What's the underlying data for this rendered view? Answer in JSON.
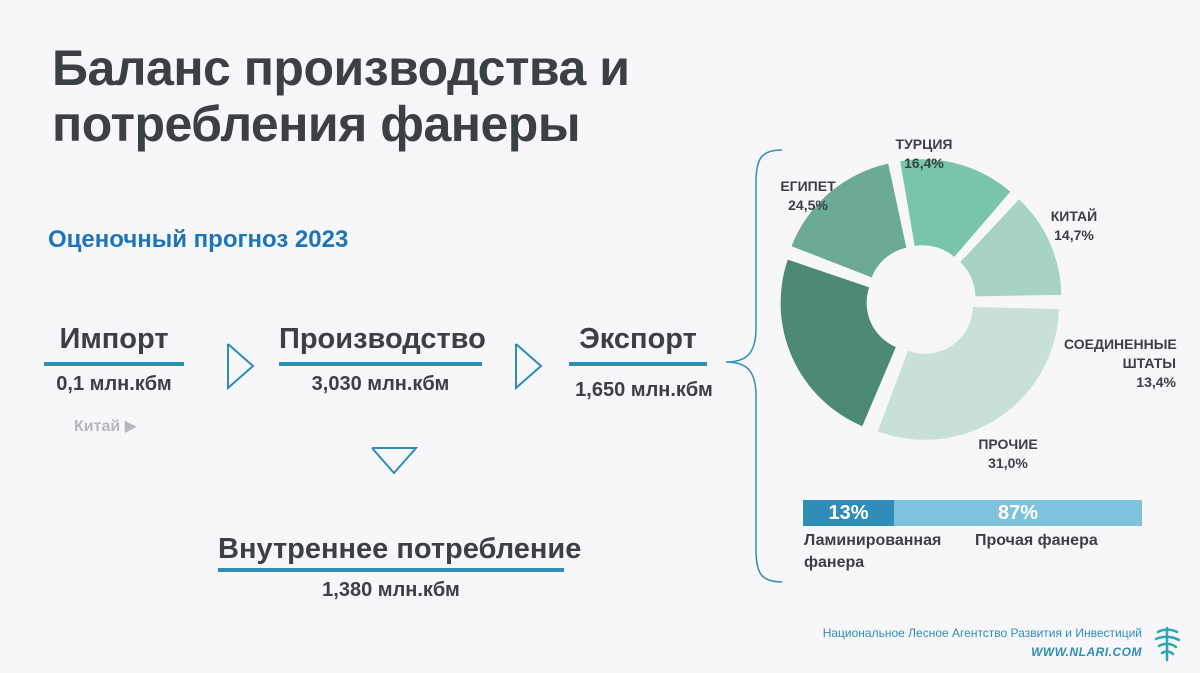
{
  "title": "Баланс производства и потребления фанеры",
  "subtitle": "Оценочный прогноз 2023",
  "flow": {
    "import": {
      "label": "Импорт",
      "value": "0,1 млн.кбм",
      "note": "Китай ▶"
    },
    "production": {
      "label": "Производство",
      "value": "3,030 млн.кбм"
    },
    "export": {
      "label": "Экспорт",
      "value": "1,650 млн.кбм"
    },
    "domestic": {
      "label": "Внутреннее потребление",
      "value": "1,380 млн.кбм"
    }
  },
  "chart_data": [
    {
      "type": "pie",
      "title": "",
      "categories": [
        "ТУРЦИЯ",
        "КИТАЙ",
        "СОЕДИНЕННЫЕ ШТАТЫ",
        "ПРОЧИЕ",
        "ЕГИПЕТ"
      ],
      "values": [
        16.4,
        14.7,
        13.4,
        31.0,
        24.5
      ],
      "labels": [
        "16,4%",
        "14,7%",
        "13,4%",
        "31,0%",
        "24,5%"
      ],
      "colors": [
        "#6aaa97",
        "#78c5aa",
        "#a7d3c4",
        "#c7e1d8",
        "#4c8a73"
      ],
      "legend": "none"
    },
    {
      "type": "bar",
      "title": "",
      "categories": [
        "Ламинированная фанера",
        "Прочая фанера"
      ],
      "values": [
        13,
        87
      ],
      "labels": [
        "13%",
        "87%"
      ],
      "colors": [
        "#2f8db8",
        "#80c1dc"
      ]
    }
  ],
  "pie_label_lines": {
    "turkey": "ТУРЦИЯ",
    "china": "КИТАЙ",
    "usa_1": "СОЕДИНЕННЫЕ",
    "usa_2": "ШТАТЫ",
    "other": "ПРОЧИЕ",
    "egypt": "ЕГИПЕТ"
  },
  "split_label_lines": {
    "laminated_1": "Ламинированная",
    "laminated_2": "фанера",
    "other": "Прочая фанера"
  },
  "footer": {
    "org": "Национальное Лесное Агентство Развития и Инвестиций",
    "url": "WWW.NLARI.COM"
  },
  "colors": {
    "accent_blue": "#2f8db8",
    "title_text": "#3b4142",
    "subtitle_blue": "#1f75b9"
  },
  "icons": [
    "chevron-right-icon",
    "chevron-down-icon",
    "curly-brace-icon",
    "tree-logo-icon"
  ]
}
